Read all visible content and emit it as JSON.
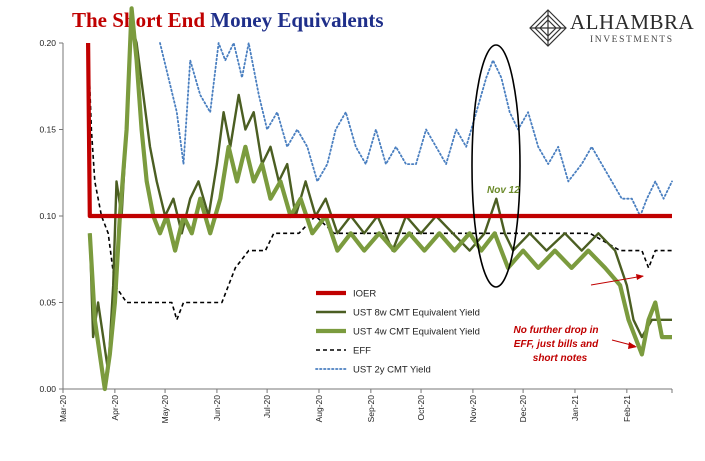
{
  "header": {
    "title_part1": "The Short End",
    "title_part2": "Money Equivalents"
  },
  "logo": {
    "brand": "ALHAMBRA",
    "sub": "INVESTMENTS",
    "icon": "alhambra-diamond-icon"
  },
  "chart_data": {
    "type": "line",
    "ylim": [
      0.0,
      0.2
    ],
    "yticks": [
      "0.00",
      "0.05",
      "0.10",
      "0.15",
      "0.20"
    ],
    "yticks_values": [
      0.0,
      0.05,
      0.1,
      0.15,
      0.2
    ],
    "xticks": [
      "Mar-20",
      "Apr-20",
      "May-20",
      "Jun-20",
      "Jul-20",
      "Aug-20",
      "Sep-20",
      "Oct-20",
      "Nov-20",
      "Dec-20",
      "Jan-21",
      "Feb-21"
    ],
    "x_dates": [
      "2020-03-01",
      "2020-04-01",
      "2020-05-01",
      "2020-06-01",
      "2020-07-01",
      "2020-08-01",
      "2020-09-01",
      "2020-10-01",
      "2020-11-01",
      "2020-12-01",
      "2021-01-01",
      "2021-02-01",
      "2021-02-28"
    ],
    "grid": false,
    "legend_position": "center-bottom",
    "series": [
      {
        "name": "IOER",
        "color": "#c00000",
        "style": "solid-thick",
        "points": [
          [
            "2020-03-16",
            0.2
          ],
          [
            "2020-03-17",
            0.1
          ],
          [
            "2021-02-28",
            0.1
          ]
        ]
      },
      {
        "name": "UST 8w CMT Equivalent Yield",
        "color": "#4b5e22",
        "style": "solid",
        "points": [
          [
            "2020-03-17",
            0.09
          ],
          [
            "2020-03-19",
            0.03
          ],
          [
            "2020-03-22",
            0.05
          ],
          [
            "2020-03-25",
            0.03
          ],
          [
            "2020-03-28",
            0.01
          ],
          [
            "2020-03-31",
            0.06
          ],
          [
            "2020-04-02",
            0.12
          ],
          [
            "2020-04-05",
            0.1
          ],
          [
            "2020-04-08",
            0.15
          ],
          [
            "2020-04-11",
            0.21
          ],
          [
            "2020-04-14",
            0.2
          ],
          [
            "2020-04-18",
            0.17
          ],
          [
            "2020-04-22",
            0.14
          ],
          [
            "2020-04-26",
            0.12
          ],
          [
            "2020-05-01",
            0.1
          ],
          [
            "2020-05-06",
            0.11
          ],
          [
            "2020-05-11",
            0.09
          ],
          [
            "2020-05-16",
            0.11
          ],
          [
            "2020-05-21",
            0.12
          ],
          [
            "2020-05-27",
            0.1
          ],
          [
            "2020-06-01",
            0.13
          ],
          [
            "2020-06-05",
            0.16
          ],
          [
            "2020-06-09",
            0.14
          ],
          [
            "2020-06-14",
            0.17
          ],
          [
            "2020-06-18",
            0.15
          ],
          [
            "2020-06-23",
            0.16
          ],
          [
            "2020-06-28",
            0.13
          ],
          [
            "2020-07-03",
            0.14
          ],
          [
            "2020-07-08",
            0.12
          ],
          [
            "2020-07-13",
            0.13
          ],
          [
            "2020-07-18",
            0.1
          ],
          [
            "2020-07-24",
            0.12
          ],
          [
            "2020-07-30",
            0.1
          ],
          [
            "2020-08-05",
            0.11
          ],
          [
            "2020-08-12",
            0.09
          ],
          [
            "2020-08-20",
            0.1
          ],
          [
            "2020-08-28",
            0.09
          ],
          [
            "2020-09-05",
            0.1
          ],
          [
            "2020-09-14",
            0.08
          ],
          [
            "2020-09-22",
            0.1
          ],
          [
            "2020-10-01",
            0.09
          ],
          [
            "2020-10-10",
            0.1
          ],
          [
            "2020-10-20",
            0.09
          ],
          [
            "2020-10-30",
            0.08
          ],
          [
            "2020-11-08",
            0.09
          ],
          [
            "2020-11-15",
            0.11
          ],
          [
            "2020-11-20",
            0.09
          ],
          [
            "2020-11-25",
            0.08
          ],
          [
            "2020-12-05",
            0.09
          ],
          [
            "2020-12-15",
            0.08
          ],
          [
            "2020-12-26",
            0.09
          ],
          [
            "2021-01-05",
            0.08
          ],
          [
            "2021-01-15",
            0.09
          ],
          [
            "2021-01-25",
            0.08
          ],
          [
            "2021-02-01",
            0.06
          ],
          [
            "2021-02-05",
            0.04
          ],
          [
            "2021-02-10",
            0.03
          ],
          [
            "2021-02-16",
            0.04
          ],
          [
            "2021-02-22",
            0.04
          ],
          [
            "2021-02-28",
            0.04
          ]
        ]
      },
      {
        "name": "UST 4w CMT Equivalent Yield",
        "color": "#7b9b3e",
        "style": "solid-thick",
        "points": [
          [
            "2020-03-17",
            0.09
          ],
          [
            "2020-03-20",
            0.04
          ],
          [
            "2020-03-23",
            0.02
          ],
          [
            "2020-03-26",
            0.0
          ],
          [
            "2020-03-29",
            0.02
          ],
          [
            "2020-04-01",
            0.05
          ],
          [
            "2020-04-04",
            0.1
          ],
          [
            "2020-04-08",
            0.15
          ],
          [
            "2020-04-11",
            0.22
          ],
          [
            "2020-04-14",
            0.19
          ],
          [
            "2020-04-17",
            0.15
          ],
          [
            "2020-04-20",
            0.12
          ],
          [
            "2020-04-24",
            0.1
          ],
          [
            "2020-04-28",
            0.09
          ],
          [
            "2020-05-02",
            0.1
          ],
          [
            "2020-05-07",
            0.08
          ],
          [
            "2020-05-12",
            0.1
          ],
          [
            "2020-05-17",
            0.09
          ],
          [
            "2020-05-22",
            0.11
          ],
          [
            "2020-05-28",
            0.09
          ],
          [
            "2020-06-03",
            0.11
          ],
          [
            "2020-06-08",
            0.14
          ],
          [
            "2020-06-13",
            0.12
          ],
          [
            "2020-06-18",
            0.14
          ],
          [
            "2020-06-23",
            0.12
          ],
          [
            "2020-06-28",
            0.13
          ],
          [
            "2020-07-03",
            0.11
          ],
          [
            "2020-07-09",
            0.12
          ],
          [
            "2020-07-15",
            0.1
          ],
          [
            "2020-07-21",
            0.11
          ],
          [
            "2020-07-28",
            0.09
          ],
          [
            "2020-08-05",
            0.1
          ],
          [
            "2020-08-12",
            0.08
          ],
          [
            "2020-08-20",
            0.09
          ],
          [
            "2020-08-28",
            0.08
          ],
          [
            "2020-09-06",
            0.09
          ],
          [
            "2020-09-15",
            0.08
          ],
          [
            "2020-09-24",
            0.09
          ],
          [
            "2020-10-03",
            0.08
          ],
          [
            "2020-10-12",
            0.09
          ],
          [
            "2020-10-21",
            0.08
          ],
          [
            "2020-10-30",
            0.09
          ],
          [
            "2020-11-06",
            0.08
          ],
          [
            "2020-11-14",
            0.09
          ],
          [
            "2020-11-22",
            0.07
          ],
          [
            "2020-12-01",
            0.08
          ],
          [
            "2020-12-10",
            0.07
          ],
          [
            "2020-12-20",
            0.08
          ],
          [
            "2020-12-30",
            0.07
          ],
          [
            "2021-01-09",
            0.08
          ],
          [
            "2021-01-19",
            0.07
          ],
          [
            "2021-01-28",
            0.06
          ],
          [
            "2021-02-02",
            0.04
          ],
          [
            "2021-02-06",
            0.03
          ],
          [
            "2021-02-10",
            0.02
          ],
          [
            "2021-02-14",
            0.04
          ],
          [
            "2021-02-18",
            0.05
          ],
          [
            "2021-02-22",
            0.03
          ],
          [
            "2021-02-28",
            0.03
          ]
        ]
      },
      {
        "name": "EFF",
        "color": "#000000",
        "style": "dashed",
        "points": [
          [
            "2020-03-16",
            0.2
          ],
          [
            "2020-03-18",
            0.15
          ],
          [
            "2020-03-20",
            0.12
          ],
          [
            "2020-03-24",
            0.1
          ],
          [
            "2020-03-28",
            0.09
          ],
          [
            "2020-04-01",
            0.06
          ],
          [
            "2020-04-08",
            0.05
          ],
          [
            "2020-04-20",
            0.05
          ],
          [
            "2020-04-28",
            0.05
          ],
          [
            "2020-05-05",
            0.05
          ],
          [
            "2020-05-08",
            0.04
          ],
          [
            "2020-05-12",
            0.05
          ],
          [
            "2020-05-25",
            0.05
          ],
          [
            "2020-06-04",
            0.05
          ],
          [
            "2020-06-08",
            0.06
          ],
          [
            "2020-06-12",
            0.07
          ],
          [
            "2020-06-20",
            0.08
          ],
          [
            "2020-06-30",
            0.08
          ],
          [
            "2020-07-05",
            0.09
          ],
          [
            "2020-07-20",
            0.09
          ],
          [
            "2020-07-30",
            0.1
          ],
          [
            "2020-08-10",
            0.09
          ],
          [
            "2020-08-30",
            0.09
          ],
          [
            "2020-09-15",
            0.09
          ],
          [
            "2020-10-01",
            0.09
          ],
          [
            "2020-10-25",
            0.09
          ],
          [
            "2020-11-10",
            0.09
          ],
          [
            "2020-12-01",
            0.09
          ],
          [
            "2020-12-20",
            0.09
          ],
          [
            "2021-01-10",
            0.09
          ],
          [
            "2021-01-28",
            0.08
          ],
          [
            "2021-02-10",
            0.08
          ],
          [
            "2021-02-14",
            0.07
          ],
          [
            "2021-02-18",
            0.08
          ],
          [
            "2021-02-28",
            0.08
          ]
        ]
      },
      {
        "name": "UST 2y CMT Yield",
        "color": "#4a7fc0",
        "style": "dotted",
        "points": [
          [
            "2020-04-28",
            0.2
          ],
          [
            "2020-05-03",
            0.18
          ],
          [
            "2020-05-08",
            0.16
          ],
          [
            "2020-05-12",
            0.13
          ],
          [
            "2020-05-16",
            0.19
          ],
          [
            "2020-05-22",
            0.17
          ],
          [
            "2020-05-28",
            0.16
          ],
          [
            "2020-06-02",
            0.2
          ],
          [
            "2020-06-06",
            0.19
          ],
          [
            "2020-06-11",
            0.2
          ],
          [
            "2020-06-16",
            0.18
          ],
          [
            "2020-06-20",
            0.2
          ],
          [
            "2020-06-26",
            0.17
          ],
          [
            "2020-07-01",
            0.15
          ],
          [
            "2020-07-07",
            0.16
          ],
          [
            "2020-07-13",
            0.14
          ],
          [
            "2020-07-19",
            0.15
          ],
          [
            "2020-07-25",
            0.14
          ],
          [
            "2020-07-31",
            0.12
          ],
          [
            "2020-08-06",
            0.13
          ],
          [
            "2020-08-11",
            0.15
          ],
          [
            "2020-08-17",
            0.16
          ],
          [
            "2020-08-23",
            0.14
          ],
          [
            "2020-08-29",
            0.13
          ],
          [
            "2020-09-04",
            0.15
          ],
          [
            "2020-09-10",
            0.13
          ],
          [
            "2020-09-16",
            0.14
          ],
          [
            "2020-09-22",
            0.13
          ],
          [
            "2020-09-28",
            0.13
          ],
          [
            "2020-10-04",
            0.15
          ],
          [
            "2020-10-10",
            0.14
          ],
          [
            "2020-10-16",
            0.13
          ],
          [
            "2020-10-22",
            0.15
          ],
          [
            "2020-10-28",
            0.14
          ],
          [
            "2020-11-03",
            0.16
          ],
          [
            "2020-11-09",
            0.18
          ],
          [
            "2020-11-13",
            0.19
          ],
          [
            "2020-11-18",
            0.18
          ],
          [
            "2020-11-23",
            0.16
          ],
          [
            "2020-11-28",
            0.15
          ],
          [
            "2020-12-04",
            0.16
          ],
          [
            "2020-12-10",
            0.14
          ],
          [
            "2020-12-16",
            0.13
          ],
          [
            "2020-12-22",
            0.14
          ],
          [
            "2020-12-28",
            0.12
          ],
          [
            "2021-01-05",
            0.13
          ],
          [
            "2021-01-11",
            0.14
          ],
          [
            "2021-01-17",
            0.13
          ],
          [
            "2021-01-23",
            0.12
          ],
          [
            "2021-01-29",
            0.11
          ],
          [
            "2021-02-04",
            0.11
          ],
          [
            "2021-02-09",
            0.1
          ],
          [
            "2021-02-13",
            0.11
          ],
          [
            "2021-02-18",
            0.12
          ],
          [
            "2021-02-23",
            0.11
          ],
          [
            "2021-02-28",
            0.12
          ]
        ]
      }
    ],
    "annotations": [
      {
        "text": "Nov 12"
      },
      {
        "text_lines": [
          "No further drop in",
          "EFF, just bills and",
          "short notes"
        ]
      }
    ]
  }
}
